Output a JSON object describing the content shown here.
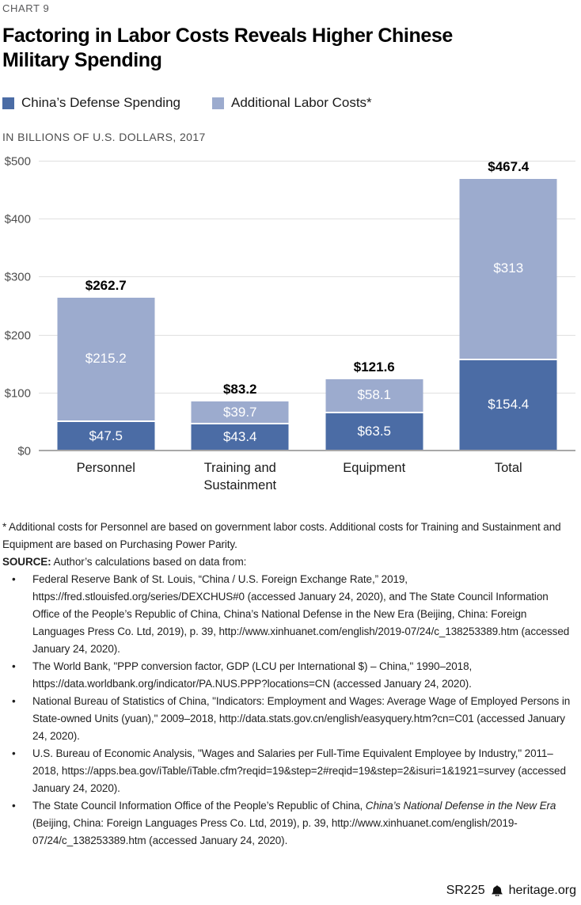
{
  "page": {
    "kicker": "CHART 9",
    "title": "Factoring in Labor Costs Reveals Higher Chinese Military Spending",
    "title_lines": [
      "Factoring in Labor Costs Reveals Higher Chinese",
      "Military Spending"
    ],
    "units_label": "IN BILLIONS OF U.S. DOLLARS, 2017"
  },
  "legend": [
    {
      "label": "China’s Defense Spending",
      "color": "#4b6ca5"
    },
    {
      "label": "Additional Labor Costs*",
      "color": "#9cabce"
    }
  ],
  "chart_data": {
    "type": "bar",
    "stacked": true,
    "title": "Factoring in Labor Costs Reveals Higher Chinese Military Spending",
    "ylabel": "IN BILLIONS OF U.S. DOLLARS, 2017",
    "categories": [
      "Personnel",
      "Training and Sustainment",
      "Equipment",
      "Total"
    ],
    "series": [
      {
        "name": "China’s Defense Spending",
        "color": "#4b6ca5",
        "values": [
          47.5,
          43.4,
          63.5,
          154.4
        ],
        "labels": [
          "$47.5",
          "$43.4",
          "$63.5",
          "$154.4"
        ]
      },
      {
        "name": "Additional Labor Costs*",
        "color": "#9cabce",
        "values": [
          215.2,
          39.7,
          58.1,
          313
        ],
        "labels": [
          "$215.2",
          "$39.7",
          "$58.1",
          "$313"
        ]
      }
    ],
    "totals": [
      262.7,
      83.2,
      121.6,
      467.4
    ],
    "total_labels": [
      "$262.7",
      "$83.2",
      "$121.6",
      "$467.4"
    ],
    "ylim": [
      0,
      500
    ],
    "yticks": [
      {
        "v": 0,
        "label": "$0"
      },
      {
        "v": 100,
        "label": "$100"
      },
      {
        "v": 200,
        "label": "$200"
      },
      {
        "v": 300,
        "label": "$300"
      },
      {
        "v": 400,
        "label": "$400"
      },
      {
        "v": 500,
        "label": "$500"
      }
    ],
    "grid": true,
    "legend_position": "top"
  },
  "notes": {
    "footnote": "* Additional costs for Personnel are based on government labor costs. Additional costs for Training and Sustainment and Equipment are based on Purchasing Power Parity.",
    "source_label": "SOURCE:",
    "source_intro": " Author’s calculations based on data from:",
    "bullets": [
      {
        "parts": [
          {
            "t": "Federal Reserve Bank of St. Louis, “China / U.S. Foreign Exchange Rate,” 2019, https://fred.stlouisfed.org/series/DEXCHUS#0 (accessed January 24, 2020), and The State Council Information Office of the People’s Republic of China, China’s National Defense in the New Era (Beijing, China: Foreign Languages Press Co. Ltd, 2019), p. 39, http://www.xinhuanet.com/english/2019-07/24/c_138253389.htm (accessed January 24, 2020).",
            "i": false
          }
        ]
      },
      {
        "parts": [
          {
            "t": "The World Bank, \"PPP conversion factor, GDP (LCU per International $) – China,\" 1990–2018, https://data.worldbank.org/indicator/PA.NUS.PPP?locations=CN (accessed January 24, 2020).",
            "i": false
          }
        ]
      },
      {
        "parts": [
          {
            "t": "National Bureau of Statistics of China, \"Indicators: Employment and Wages: Average Wage of Employed Persons in State-owned Units (yuan),\" 2009–2018, http://data.stats.gov.cn/english/easyquery.htm?cn=C01 (accessed January 24, 2020).",
            "i": false
          }
        ]
      },
      {
        "parts": [
          {
            "t": "U.S. Bureau of Economic Analysis, \"Wages and Salaries per Full-Time Equivalent Employee by Industry,\" 2011–2018, https://apps.bea.gov/iTable/iTable.cfm?reqid=19&step=2#reqid=19&step=2&isuri=1&1921=survey (accessed January 24, 2020).",
            "i": false
          }
        ]
      },
      {
        "parts": [
          {
            "t": "The State Council Information Office of the People’s Republic of China, ",
            "i": false
          },
          {
            "t": "China’s National Defense in the New Era",
            "i": true
          },
          {
            "t": " (Beijing, China: Foreign Languages Press Co. Ltd, 2019), p. 39, http://www.xinhuanet.com/english/2019-07/24/c_138253389.htm (accessed January 24, 2020).",
            "i": false
          }
        ]
      }
    ]
  },
  "footer": {
    "report_id": "SR225",
    "site": "heritage.org",
    "icon": "liberty-bell-icon"
  }
}
